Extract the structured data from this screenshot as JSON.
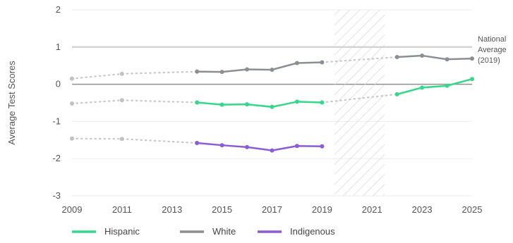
{
  "chart_data": {
    "type": "line",
    "ylabel": "Average Test Scores",
    "xlabel": "",
    "xlim": [
      2009,
      2025
    ],
    "ylim": [
      -3,
      2
    ],
    "x_ticks": [
      "2009",
      "2011",
      "2013",
      "2015",
      "2017",
      "2019",
      "2021",
      "2023",
      "2025"
    ],
    "y_ticks": [
      "2",
      "1",
      "0",
      "-1",
      "-2",
      "-3"
    ],
    "grid": "horizontal",
    "legend_position": "bottom-left",
    "hatched_region": [
      2019.5,
      2021.5
    ],
    "reference_line": {
      "y": 1,
      "label": [
        "National",
        "Average",
        "(2019)"
      ]
    },
    "series": [
      {
        "name": "Hispanic",
        "color": "#34d88a",
        "dotted": [
          [
            2009,
            -0.52
          ],
          [
            2011,
            -0.43
          ],
          [
            2014,
            -0.49
          ]
        ],
        "solid_segments": [
          [
            [
              2014,
              -0.49
            ],
            [
              2015,
              -0.55
            ],
            [
              2016,
              -0.54
            ],
            [
              2017,
              -0.61
            ],
            [
              2018,
              -0.47
            ],
            [
              2019,
              -0.49
            ]
          ],
          [
            [
              2022,
              -0.27
            ],
            [
              2023,
              -0.09
            ],
            [
              2024,
              -0.04
            ],
            [
              2025,
              0.14
            ]
          ]
        ],
        "bridge": [
          [
            2019,
            -0.49
          ],
          [
            2022,
            -0.27
          ]
        ]
      },
      {
        "name": "White",
        "color": "#8a8f94",
        "dotted": [
          [
            2009,
            0.15
          ],
          [
            2011,
            0.28
          ],
          [
            2014,
            0.34
          ]
        ],
        "solid_segments": [
          [
            [
              2014,
              0.34
            ],
            [
              2015,
              0.33
            ],
            [
              2016,
              0.4
            ],
            [
              2017,
              0.39
            ],
            [
              2018,
              0.57
            ],
            [
              2019,
              0.59
            ]
          ],
          [
            [
              2022,
              0.73
            ],
            [
              2023,
              0.77
            ],
            [
              2024,
              0.67
            ],
            [
              2025,
              0.69
            ]
          ]
        ],
        "bridge": [
          [
            2019,
            0.59
          ],
          [
            2022,
            0.73
          ]
        ]
      },
      {
        "name": "Indigenous",
        "color": "#8b5cd6",
        "dotted": [
          [
            2009,
            -1.46
          ],
          [
            2011,
            -1.47
          ],
          [
            2014,
            -1.58
          ]
        ],
        "solid_segments": [
          [
            [
              2014,
              -1.58
            ],
            [
              2015,
              -1.64
            ],
            [
              2016,
              -1.69
            ],
            [
              2017,
              -1.78
            ],
            [
              2018,
              -1.66
            ],
            [
              2019,
              -1.67
            ]
          ]
        ],
        "bridge": []
      }
    ]
  }
}
